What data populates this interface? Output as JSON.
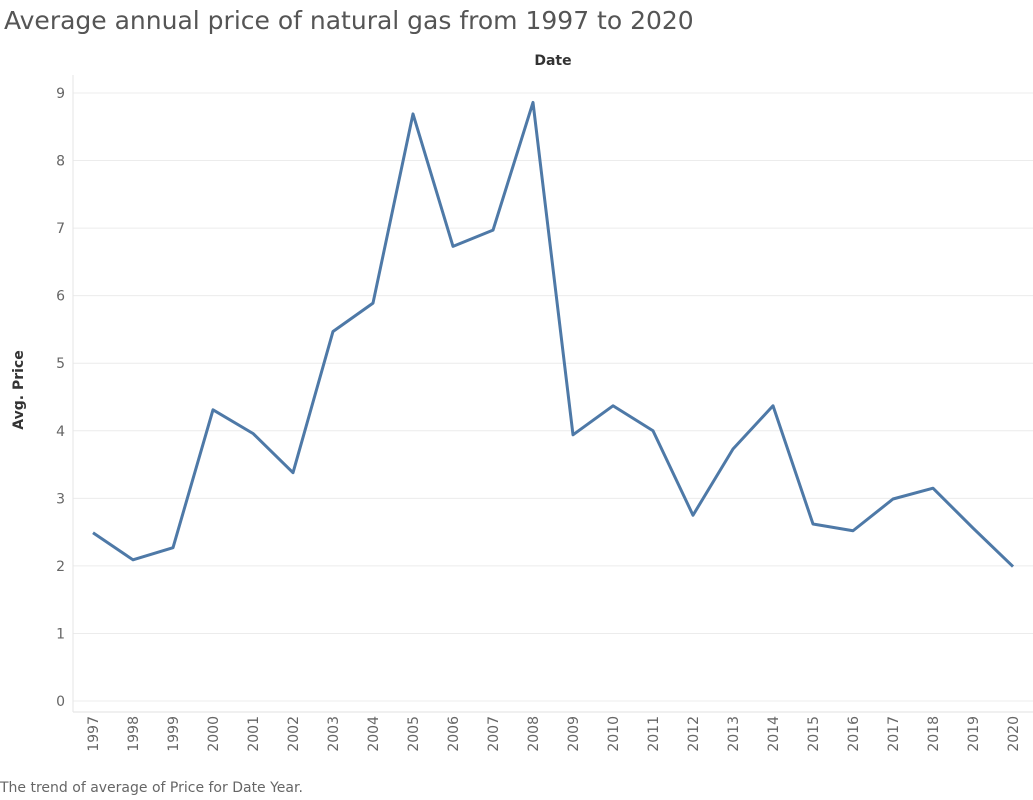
{
  "chart_data": {
    "type": "line",
    "title": "Average annual price of natural gas from 1997 to 2020",
    "caption": "The trend of average of Price for Date Year.",
    "xlabel": "Date",
    "ylabel": "Avg. Price",
    "categories": [
      "1997",
      "1998",
      "1999",
      "2000",
      "2001",
      "2002",
      "2003",
      "2004",
      "2005",
      "2006",
      "2007",
      "2008",
      "2009",
      "2010",
      "2011",
      "2012",
      "2013",
      "2014",
      "2015",
      "2016",
      "2017",
      "2018",
      "2019",
      "2020"
    ],
    "series": [
      {
        "values": [
          2.49,
          2.09,
          2.27,
          4.31,
          3.96,
          3.38,
          5.47,
          5.89,
          8.69,
          6.73,
          6.97,
          8.86,
          3.94,
          4.37,
          4.0,
          2.75,
          3.73,
          4.37,
          2.62,
          2.52,
          2.99,
          3.15,
          2.56,
          1.99
        ]
      }
    ],
    "yticks": [
      "0",
      "1",
      "2",
      "3",
      "4",
      "5",
      "6",
      "7",
      "8",
      "9"
    ],
    "ylim": [
      0,
      9
    ],
    "grid": true,
    "line_color": "#4e79a7"
  }
}
